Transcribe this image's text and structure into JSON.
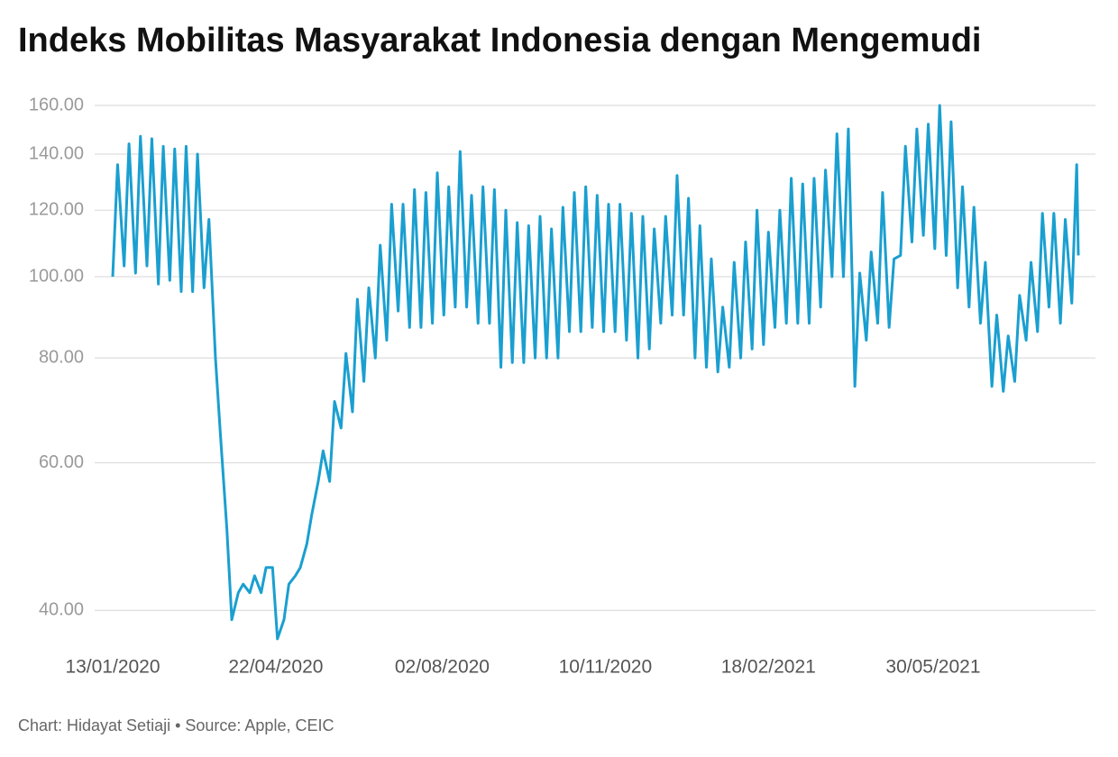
{
  "chart_data": {
    "type": "line",
    "title": "Indeks Mobilitas Masyarakat Indonesia dengan Mengemudi",
    "footer": "Chart: Hidayat Setiaji • Source: Apple, CEIC",
    "color": "#1a9fd0",
    "log_scale": true,
    "grid": true,
    "ylim": [
      36,
      162
    ],
    "yticks": [
      {
        "value": 40,
        "label": "40.00"
      },
      {
        "value": 60,
        "label": "60.00"
      },
      {
        "value": 80,
        "label": "80.00"
      },
      {
        "value": 100,
        "label": "100.00"
      },
      {
        "value": 120,
        "label": "120.00"
      },
      {
        "value": 140,
        "label": "140.00"
      },
      {
        "value": 160,
        "label": "160.00"
      }
    ],
    "xlim": [
      "13/01/2020",
      "27/08/2021"
    ],
    "xticks": [
      "13/01/2020",
      "22/04/2020",
      "02/08/2020",
      "10/11/2020",
      "18/02/2021",
      "30/05/2021"
    ],
    "x": [
      "13/01/2020",
      "16/01/2020",
      "20/01/2020",
      "23/01/2020",
      "27/01/2020",
      "30/01/2020",
      "03/02/2020",
      "06/02/2020",
      "10/02/2020",
      "13/02/2020",
      "17/02/2020",
      "20/02/2020",
      "24/02/2020",
      "27/02/2020",
      "02/03/2020",
      "05/03/2020",
      "09/03/2020",
      "12/03/2020",
      "16/03/2020",
      "19/03/2020",
      "23/03/2020",
      "26/03/2020",
      "30/03/2020",
      "02/04/2020",
      "06/04/2020",
      "09/04/2020",
      "13/04/2020",
      "16/04/2020",
      "20/04/2020",
      "23/04/2020",
      "27/04/2020",
      "30/04/2020",
      "04/05/2020",
      "07/05/2020",
      "11/05/2020",
      "14/05/2020",
      "18/05/2020",
      "21/05/2020",
      "25/05/2020",
      "28/05/2020",
      "01/06/2020",
      "04/06/2020",
      "08/06/2020",
      "11/06/2020",
      "15/06/2020",
      "18/06/2020",
      "22/06/2020",
      "25/06/2020",
      "29/06/2020",
      "02/07/2020",
      "06/07/2020",
      "09/07/2020",
      "13/07/2020",
      "16/07/2020",
      "20/07/2020",
      "23/07/2020",
      "27/07/2020",
      "30/07/2020",
      "03/08/2020",
      "06/08/2020",
      "10/08/2020",
      "13/08/2020",
      "17/08/2020",
      "20/08/2020",
      "24/08/2020",
      "27/08/2020",
      "31/08/2020",
      "03/09/2020",
      "07/09/2020",
      "10/09/2020",
      "14/09/2020",
      "17/09/2020",
      "21/09/2020",
      "24/09/2020",
      "28/09/2020",
      "01/10/2020",
      "05/10/2020",
      "08/10/2020",
      "12/10/2020",
      "15/10/2020",
      "19/10/2020",
      "22/10/2020",
      "26/10/2020",
      "29/10/2020",
      "02/11/2020",
      "05/11/2020",
      "09/11/2020",
      "12/11/2020",
      "16/11/2020",
      "19/11/2020",
      "23/11/2020",
      "26/11/2020",
      "30/11/2020",
      "03/12/2020",
      "07/12/2020",
      "10/12/2020",
      "14/12/2020",
      "17/12/2020",
      "21/12/2020",
      "24/12/2020",
      "28/12/2020",
      "31/12/2020",
      "04/01/2021",
      "07/01/2021",
      "11/01/2021",
      "14/01/2021",
      "18/01/2021",
      "21/01/2021",
      "25/01/2021",
      "28/01/2021",
      "01/02/2021",
      "04/02/2021",
      "08/02/2021",
      "11/02/2021",
      "15/02/2021",
      "18/02/2021",
      "22/02/2021",
      "25/02/2021",
      "01/03/2021",
      "04/03/2021",
      "08/03/2021",
      "11/03/2021",
      "15/03/2021",
      "18/03/2021",
      "22/03/2021",
      "25/03/2021",
      "29/03/2021",
      "01/04/2021",
      "05/04/2021",
      "08/04/2021",
      "12/04/2021",
      "15/04/2021",
      "19/04/2021",
      "22/04/2021",
      "26/04/2021",
      "29/04/2021",
      "03/05/2021",
      "06/05/2021",
      "10/05/2021",
      "13/05/2021",
      "17/05/2021",
      "20/05/2021",
      "24/05/2021",
      "27/05/2021",
      "31/05/2021",
      "03/06/2021",
      "07/06/2021",
      "10/06/2021",
      "14/06/2021",
      "17/06/2021",
      "21/06/2021",
      "24/06/2021",
      "28/06/2021",
      "01/07/2021",
      "05/07/2021",
      "08/07/2021",
      "12/07/2021",
      "15/07/2021",
      "19/07/2021",
      "22/07/2021",
      "26/07/2021",
      "29/07/2021",
      "02/08/2021",
      "05/08/2021",
      "09/08/2021",
      "12/08/2021",
      "16/08/2021",
      "19/08/2021",
      "23/08/2021",
      "26/08/2021",
      "27/08/2021"
    ],
    "values": [
      100,
      136,
      103,
      144,
      101,
      147,
      103,
      146,
      98,
      143,
      99,
      142,
      96,
      143,
      96,
      140,
      97,
      117,
      80,
      65,
      50,
      39,
      42,
      43,
      42,
      44,
      42,
      45,
      45,
      37,
      39,
      43,
      44,
      45,
      48,
      52,
      57,
      62,
      57,
      71,
      66,
      81,
      69,
      94,
      75,
      97,
      80,
      109,
      84,
      122,
      91,
      122,
      87,
      127,
      87,
      126,
      88,
      133,
      90,
      128,
      92,
      141,
      92,
      125,
      88,
      128,
      88,
      127,
      78,
      120,
      79,
      116,
      79,
      115,
      80,
      118,
      80,
      114,
      80,
      121,
      86,
      126,
      86,
      128,
      87,
      125,
      86,
      122,
      86,
      122,
      84,
      119,
      80,
      118,
      82,
      114,
      88,
      118,
      90,
      132,
      90,
      124,
      80,
      115,
      78,
      105,
      77,
      92,
      78,
      104,
      80,
      110,
      82,
      120,
      83,
      113,
      87,
      120,
      88,
      131,
      88,
      129,
      88,
      131,
      92,
      134,
      100,
      148,
      100,
      150,
      74,
      101,
      84,
      107,
      88,
      126,
      87,
      105,
      106,
      143,
      110,
      150,
      112,
      152,
      108,
      160,
      106,
      153,
      97,
      128,
      92,
      121,
      88,
      104,
      74,
      90,
      73,
      85,
      75,
      95,
      84,
      104,
      86,
      119,
      92,
      119,
      88,
      117,
      93,
      136,
      106
    ]
  }
}
